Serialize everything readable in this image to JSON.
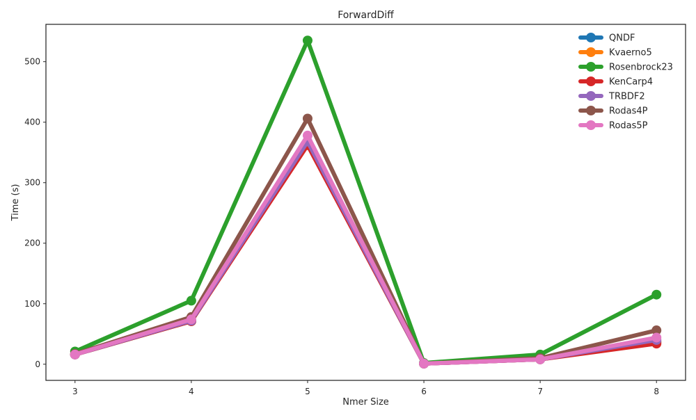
{
  "chart_data": {
    "type": "line",
    "title": "ForwardDiff",
    "xlabel": "Nmer Size",
    "ylabel": "Time (s)",
    "x": [
      3,
      4,
      5,
      6,
      7,
      8
    ],
    "xlim": [
      2.75,
      8.25
    ],
    "ylim": [
      -26.7,
      561.7
    ],
    "xticks": [
      3,
      4,
      5,
      6,
      7,
      8
    ],
    "yticks": [
      0,
      100,
      200,
      300,
      400,
      500
    ],
    "grid": false,
    "legend_position": "top-right",
    "series": [
      {
        "name": "QNDF",
        "color": "#1f77b4",
        "values": [
          16,
          71,
          365,
          1,
          8,
          37
        ]
      },
      {
        "name": "Kvaerno5",
        "color": "#ff7f0e",
        "values": [
          16,
          71,
          366,
          1,
          8,
          37
        ]
      },
      {
        "name": "Rosenbrock23",
        "color": "#2ca02c",
        "values": [
          21,
          105,
          535,
          2,
          16,
          115
        ]
      },
      {
        "name": "KenCarp4",
        "color": "#d62728",
        "values": [
          16,
          71,
          362,
          1,
          8,
          34
        ]
      },
      {
        "name": "TRBDF2",
        "color": "#9467bd",
        "values": [
          16,
          72,
          368,
          1,
          8,
          40
        ]
      },
      {
        "name": "Rodas4P",
        "color": "#8c564b",
        "values": [
          17,
          78,
          406,
          1,
          10,
          56
        ]
      },
      {
        "name": "Rodas5P",
        "color": "#e377c2",
        "values": [
          16,
          74,
          378,
          1,
          8,
          44
        ]
      }
    ]
  }
}
